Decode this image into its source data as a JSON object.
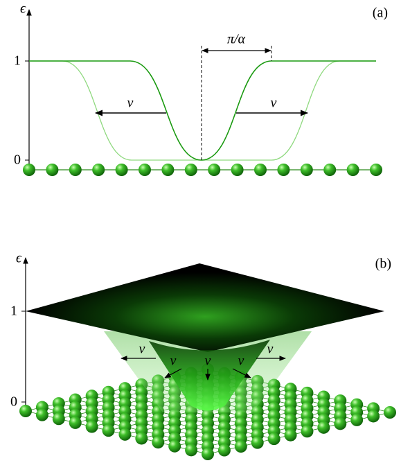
{
  "panel_a": {
    "label": "(a)",
    "axis_label": "ϵ",
    "ticks": [
      "1",
      "0"
    ],
    "period_label": "π/α",
    "velocity_labels": [
      "v",
      "v"
    ]
  },
  "panel_b": {
    "label": "(b)",
    "axis_label": "ϵ",
    "ticks": [
      "1",
      "0"
    ],
    "velocity_labels": [
      "v",
      "v",
      "v",
      "v",
      "v"
    ]
  }
}
